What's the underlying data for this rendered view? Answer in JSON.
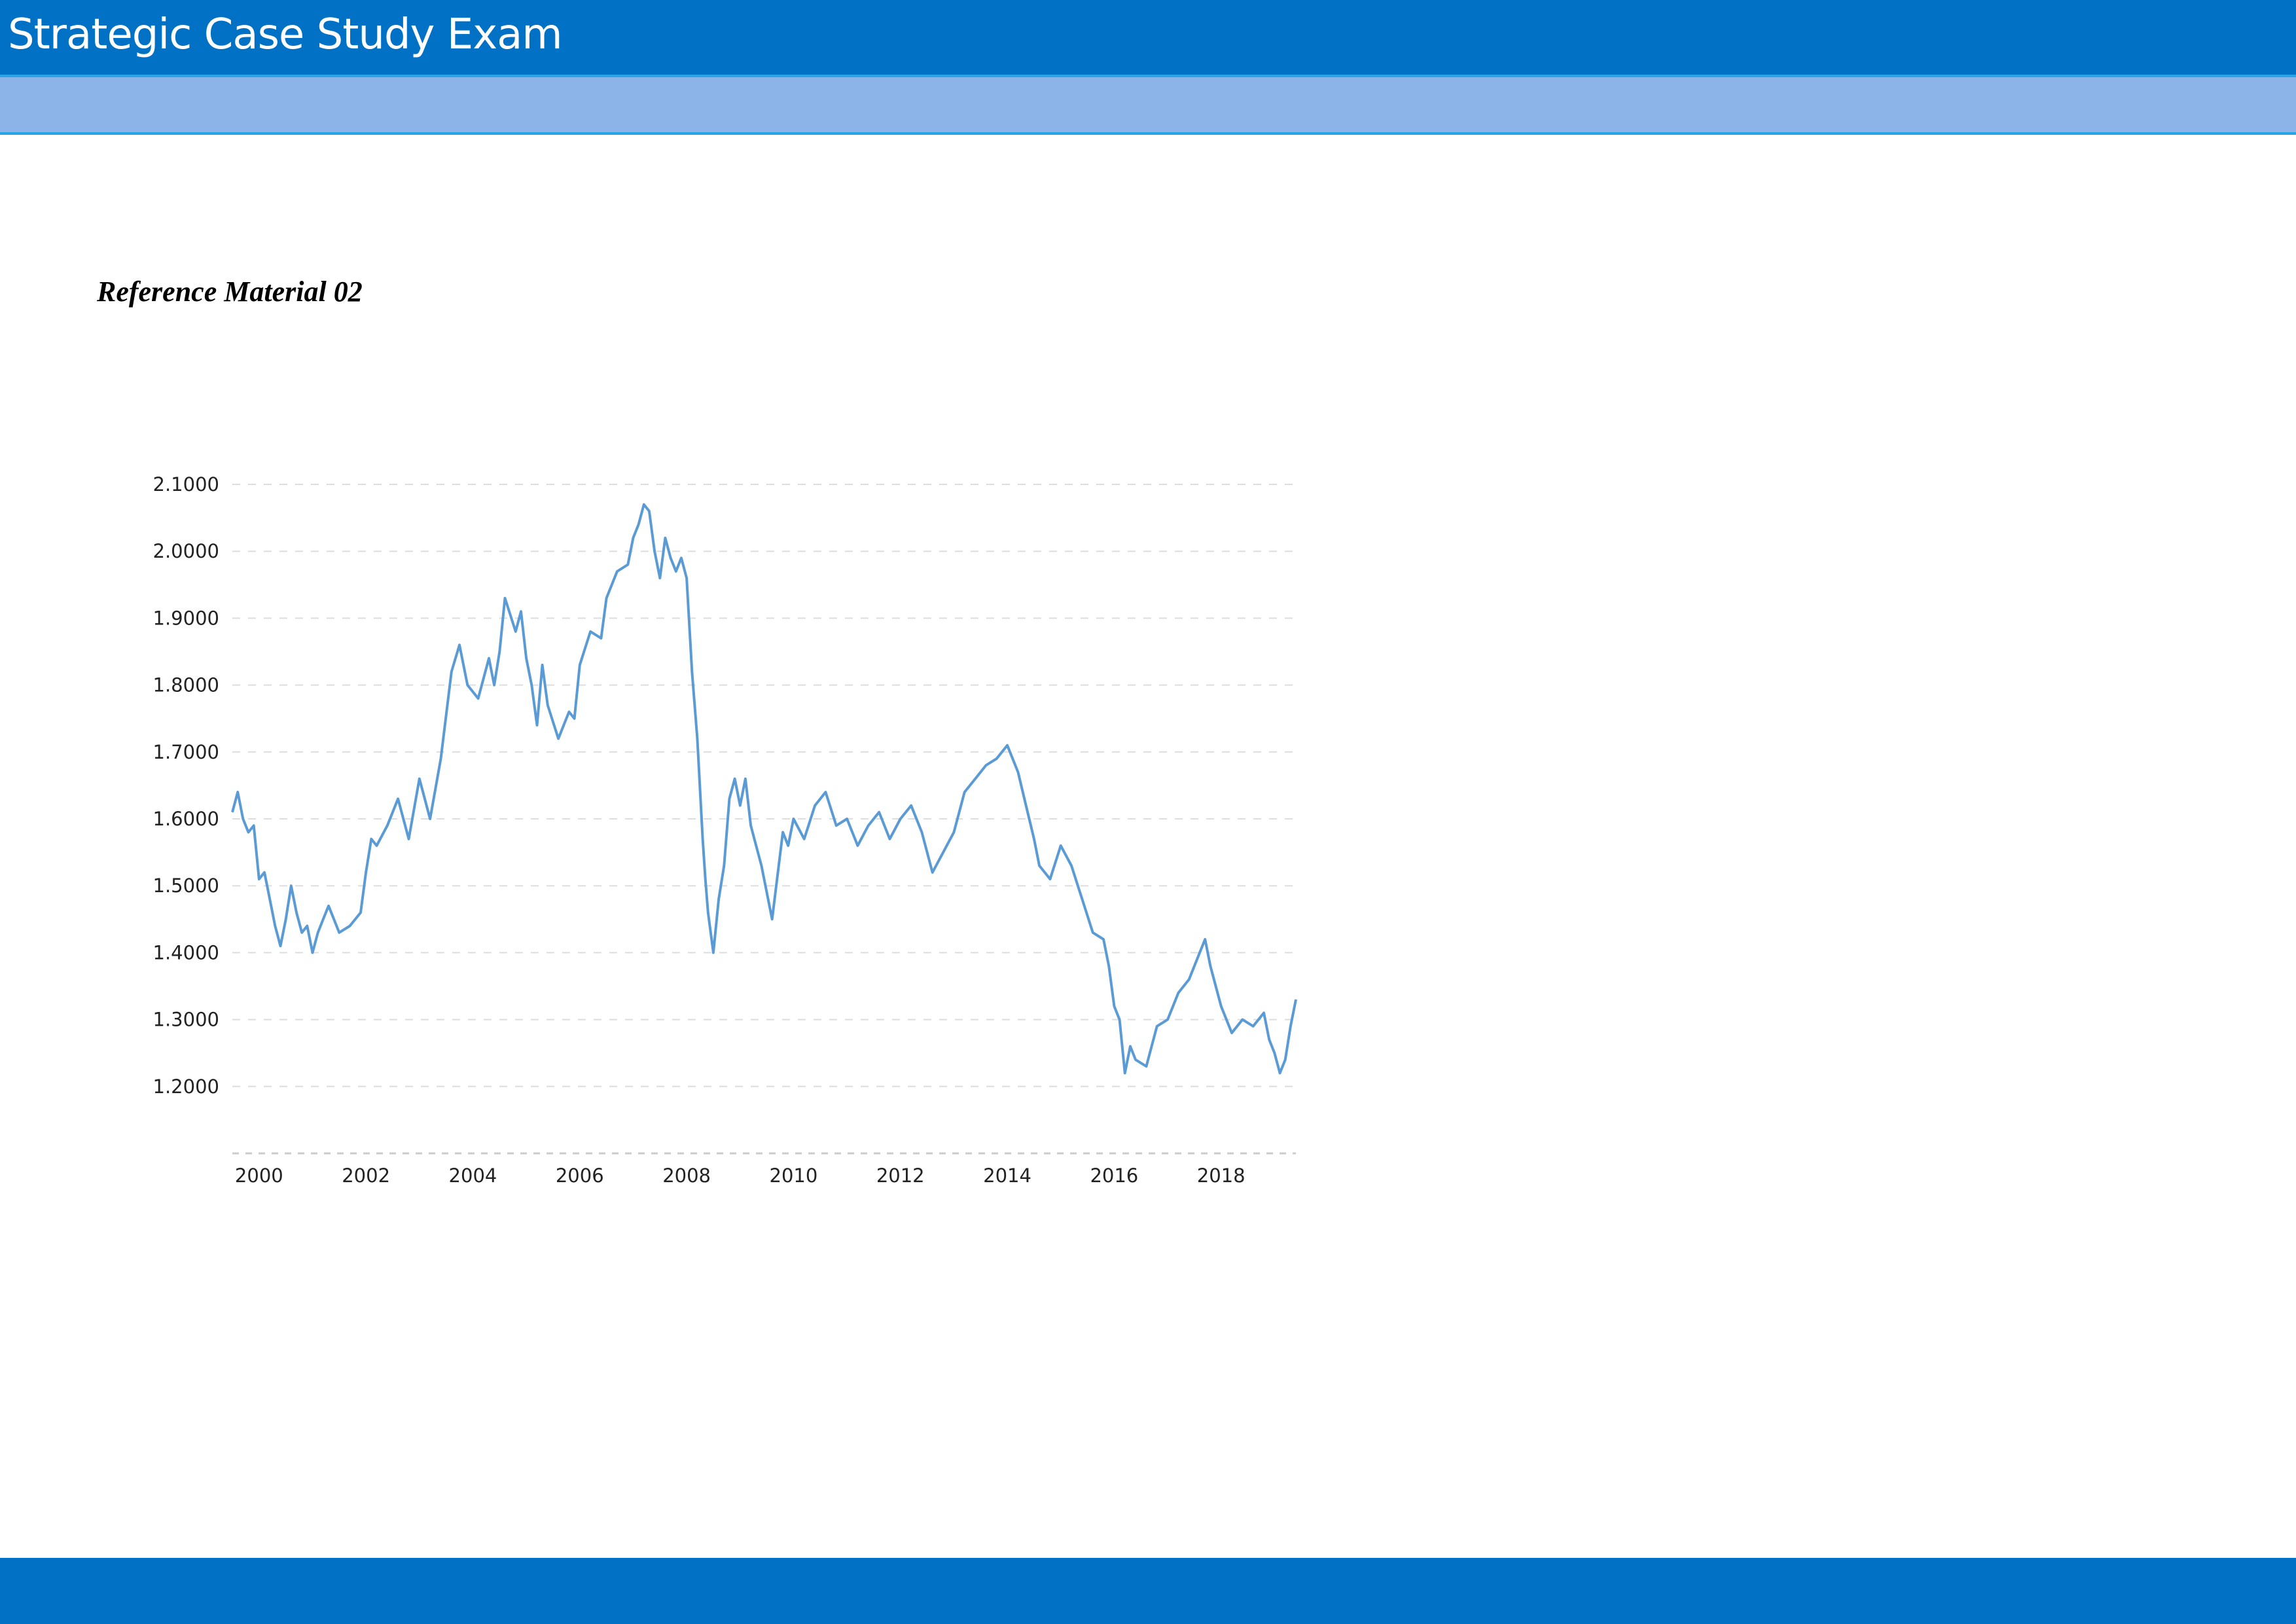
{
  "header": {
    "title": "Strategic Case Study Exam"
  },
  "reference": {
    "title": "Reference Material 02"
  },
  "colors": {
    "header": "#0071c5",
    "subheader": "#8db4e8",
    "accent_line": "#29a3e8",
    "series": "#5b9bd5",
    "grid": "#dddddd"
  },
  "chart_data": {
    "type": "line",
    "title": "",
    "xlabel": "",
    "ylabel": "",
    "xlim": [
      1999.5,
      2019.4
    ],
    "ylim": [
      1.1,
      2.1
    ],
    "grid": "horizontal dashed",
    "legend": "none",
    "y_ticks": [
      "2.1000",
      "2.0000",
      "1.9000",
      "1.8000",
      "1.7000",
      "1.6000",
      "1.5000",
      "1.4000",
      "1.3000",
      "1.2000"
    ],
    "y_tick_values": [
      2.1,
      2.0,
      1.9,
      1.8,
      1.7,
      1.6,
      1.5,
      1.4,
      1.3,
      1.2
    ],
    "x_ticks": [
      "2000",
      "2002",
      "2004",
      "2006",
      "2008",
      "2010",
      "2012",
      "2014",
      "2016",
      "2018"
    ],
    "x_tick_values": [
      2000,
      2002,
      2004,
      2006,
      2008,
      2010,
      2012,
      2014,
      2016,
      2018
    ],
    "series": [
      {
        "x": [
          1999.5,
          1999.6,
          1999.7,
          1999.8,
          1999.9,
          2000.0,
          2000.1,
          2000.2,
          2000.3,
          2000.4,
          2000.5,
          2000.6,
          2000.7,
          2000.8,
          2000.9,
          2001.0,
          2001.1,
          2001.2,
          2001.3,
          2001.5,
          2001.7,
          2001.9,
          2002.0,
          2002.1,
          2002.2,
          2002.4,
          2002.6,
          2002.8,
          2003.0,
          2003.2,
          2003.4,
          2003.6,
          2003.75,
          2003.9,
          2004.1,
          2004.3,
          2004.4,
          2004.5,
          2004.6,
          2004.8,
          2004.9,
          2005.0,
          2005.1,
          2005.2,
          2005.3,
          2005.4,
          2005.6,
          2005.8,
          2005.9,
          2006.0,
          2006.2,
          2006.4,
          2006.5,
          2006.7,
          2006.9,
          2007.0,
          2007.1,
          2007.2,
          2007.3,
          2007.4,
          2007.5,
          2007.6,
          2007.7,
          2007.8,
          2007.9,
          2008.0,
          2008.1,
          2008.2,
          2008.3,
          2008.35,
          2008.4,
          2008.5,
          2008.6,
          2008.7,
          2008.8,
          2008.9,
          2009.0,
          2009.1,
          2009.2,
          2009.4,
          2009.6,
          2009.8,
          2009.9,
          2010.0,
          2010.2,
          2010.4,
          2010.6,
          2010.8,
          2011.0,
          2011.2,
          2011.4,
          2011.6,
          2011.8,
          2012.0,
          2012.2,
          2012.4,
          2012.6,
          2012.8,
          2013.0,
          2013.2,
          2013.4,
          2013.6,
          2013.8,
          2014.0,
          2014.2,
          2014.35,
          2014.5,
          2014.6,
          2014.8,
          2015.0,
          2015.2,
          2015.4,
          2015.6,
          2015.8,
          2015.9,
          2016.0,
          2016.1,
          2016.2,
          2016.3,
          2016.4,
          2016.6,
          2016.8,
          2017.0,
          2017.2,
          2017.4,
          2017.6,
          2017.7,
          2017.8,
          2018.0,
          2018.2,
          2018.4,
          2018.6,
          2018.8,
          2018.9,
          2019.0,
          2019.1,
          2019.2,
          2019.3,
          2019.4
        ],
        "values": [
          1.61,
          1.64,
          1.6,
          1.58,
          1.59,
          1.51,
          1.52,
          1.48,
          1.44,
          1.41,
          1.45,
          1.5,
          1.46,
          1.43,
          1.44,
          1.4,
          1.43,
          1.45,
          1.47,
          1.43,
          1.44,
          1.46,
          1.52,
          1.57,
          1.56,
          1.59,
          1.63,
          1.57,
          1.66,
          1.6,
          1.69,
          1.82,
          1.86,
          1.8,
          1.78,
          1.84,
          1.8,
          1.85,
          1.93,
          1.88,
          1.91,
          1.84,
          1.8,
          1.74,
          1.83,
          1.77,
          1.72,
          1.76,
          1.75,
          1.83,
          1.88,
          1.87,
          1.93,
          1.97,
          1.98,
          2.02,
          2.04,
          2.07,
          2.06,
          2.0,
          1.96,
          2.02,
          1.99,
          1.97,
          1.99,
          1.96,
          1.82,
          1.72,
          1.57,
          1.51,
          1.46,
          1.4,
          1.48,
          1.53,
          1.63,
          1.66,
          1.62,
          1.66,
          1.59,
          1.53,
          1.45,
          1.58,
          1.56,
          1.6,
          1.57,
          1.62,
          1.64,
          1.59,
          1.6,
          1.56,
          1.59,
          1.61,
          1.57,
          1.6,
          1.62,
          1.58,
          1.52,
          1.55,
          1.58,
          1.64,
          1.66,
          1.68,
          1.69,
          1.71,
          1.67,
          1.62,
          1.57,
          1.53,
          1.51,
          1.56,
          1.53,
          1.48,
          1.43,
          1.42,
          1.38,
          1.32,
          1.3,
          1.22,
          1.26,
          1.24,
          1.23,
          1.29,
          1.3,
          1.34,
          1.36,
          1.4,
          1.42,
          1.38,
          1.32,
          1.28,
          1.3,
          1.29,
          1.31,
          1.27,
          1.25,
          1.22,
          1.24,
          1.29,
          1.33
        ]
      }
    ]
  }
}
